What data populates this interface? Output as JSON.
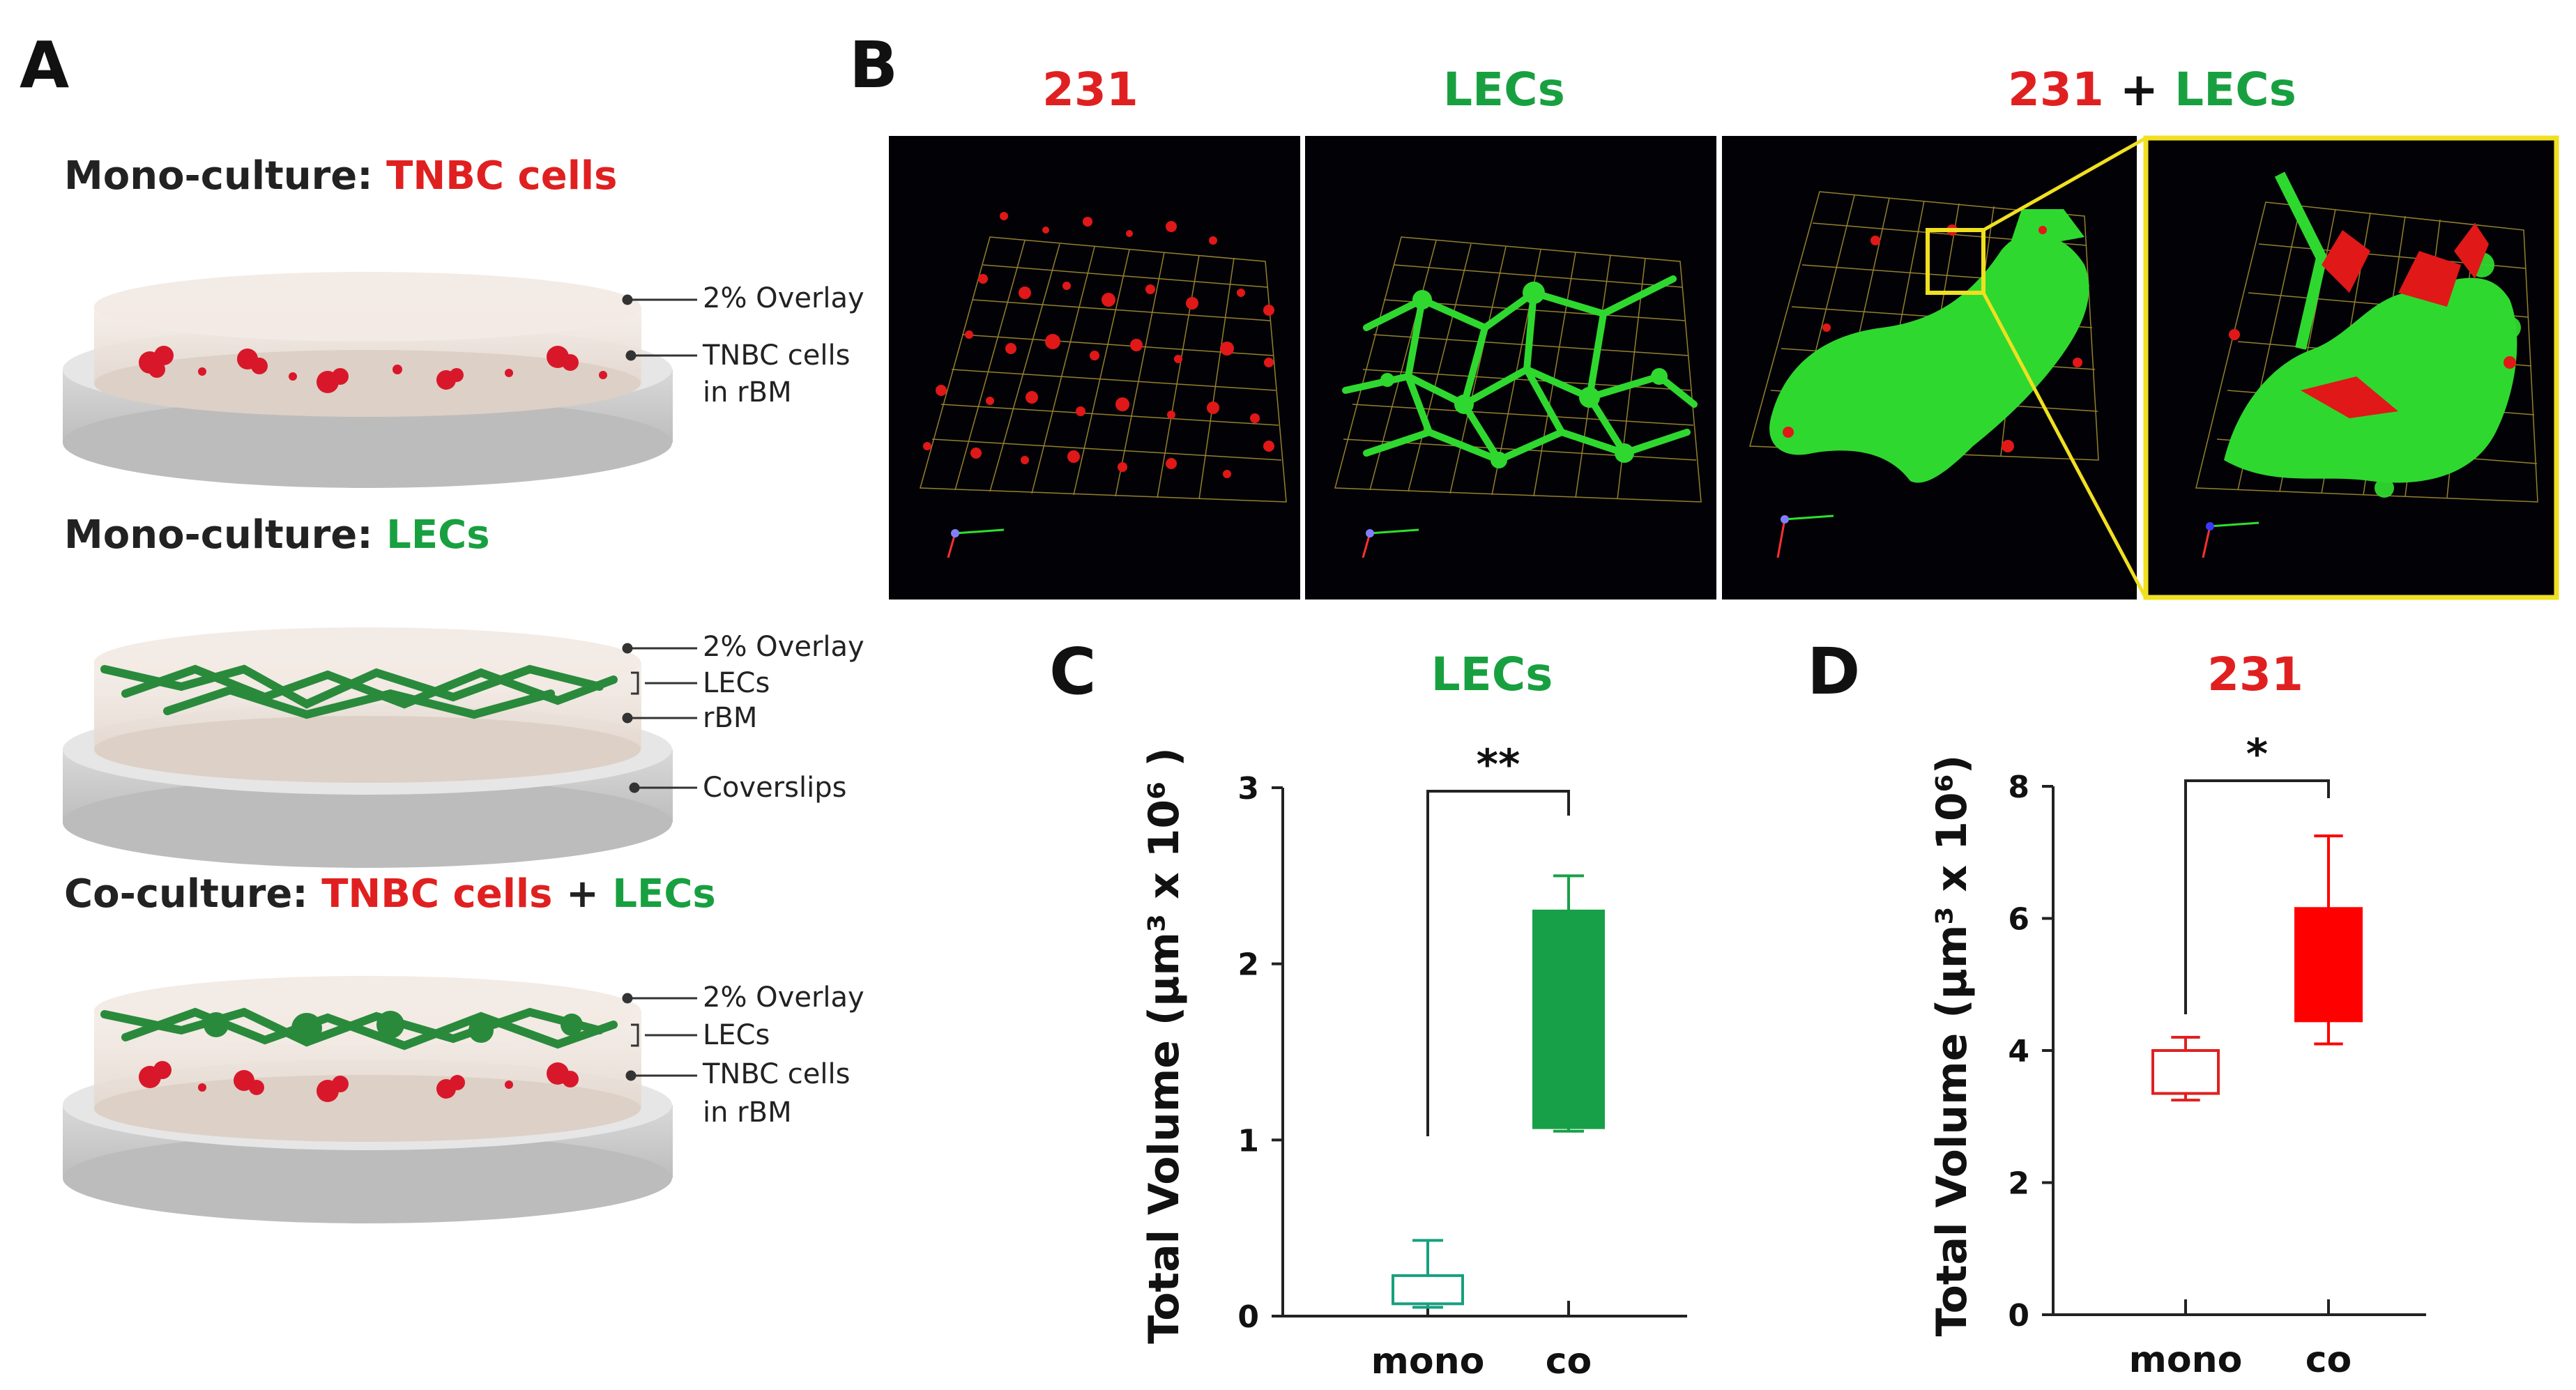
{
  "panelA": {
    "letter": "A",
    "mono_tnbc": {
      "prefix": "Mono-culture: ",
      "highlight": "TNBC cells"
    },
    "mono_lec": {
      "prefix": "Mono-culture: ",
      "highlight": "LECs"
    },
    "co": {
      "prefix": "Co-culture: ",
      "tnbc": "TNBC cells",
      "plus": " + ",
      "lec": "LECs"
    },
    "dish1_labels": {
      "overlay": "2% Overlay",
      "cells": "TNBC cells",
      "rbm": "in rBM"
    },
    "dish2_labels": {
      "overlay": "2% Overlay",
      "lecs": "LECs",
      "rbm": "rBM",
      "coverslips": "Coverslips"
    },
    "dish3_labels": {
      "overlay": "2% Overlay",
      "lecs": "LECs",
      "cells": "TNBC cells",
      "rbm": "in rBM"
    }
  },
  "panelB": {
    "letter": "B",
    "head1": "231",
    "head2": "LECs",
    "head3a": "231",
    "head3b": " + ",
    "head3c": "LECs"
  },
  "colors": {
    "red": "#e02020",
    "green": "#18a040",
    "yellow": "#f0e020"
  },
  "chart_data": [
    {
      "type": "box",
      "panel": "C",
      "title": "LECs",
      "ylabel": "Total Volume (µm³ x 10⁶ )",
      "categories": [
        "mono",
        "co"
      ],
      "yticks": [
        "0",
        "1",
        "2",
        "3"
      ],
      "ylim": [
        0,
        3
      ],
      "boxes": [
        {
          "name": "mono",
          "whisker_low": 0.05,
          "q1": 0.07,
          "q3": 0.23,
          "whisker_high": 0.43,
          "color": "#18a080",
          "filled": false
        },
        {
          "name": "co",
          "whisker_low": 1.05,
          "q1": 1.07,
          "q3": 2.3,
          "whisker_high": 2.5,
          "color": "#18a048",
          "filled": true
        }
      ],
      "significance": "**"
    },
    {
      "type": "box",
      "panel": "D",
      "title": "231",
      "ylabel": "Total Volume (µm³ x 10⁶)",
      "categories": [
        "mono",
        "co"
      ],
      "yticks": [
        "0",
        "2",
        "4",
        "6",
        "8"
      ],
      "ylim": [
        0,
        8
      ],
      "boxes": [
        {
          "name": "mono",
          "whisker_low": 3.25,
          "q1": 3.35,
          "q3": 4.0,
          "whisker_high": 4.2,
          "color": "#e02020",
          "filled": false
        },
        {
          "name": "co",
          "whisker_low": 4.1,
          "q1": 4.45,
          "q3": 6.15,
          "whisker_high": 7.25,
          "color": "#ff0000",
          "filled": true
        }
      ],
      "significance": "*"
    }
  ]
}
